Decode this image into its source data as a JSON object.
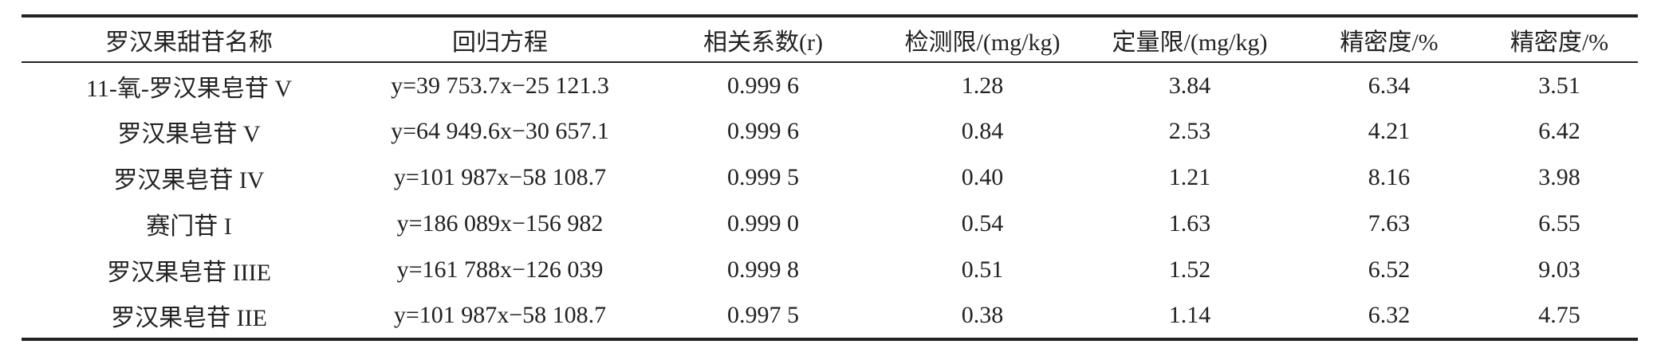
{
  "table": {
    "headers": [
      "罗汉果甜苷名称",
      "回归方程",
      "相关系数(r)",
      "检测限/(mg/kg)",
      "定量限/(mg/kg)",
      "精密度/%",
      "精密度/%"
    ],
    "rows": [
      [
        "11-氧-罗汉果皂苷 V",
        "y=39 753.7x−25 121.3",
        "0.999 6",
        "1.28",
        "3.84",
        "6.34",
        "3.51"
      ],
      [
        "罗汉果皂苷 V",
        "y=64 949.6x−30 657.1",
        "0.999 6",
        "0.84",
        "2.53",
        "4.21",
        "6.42"
      ],
      [
        "罗汉果皂苷 IV",
        "y=101 987x−58 108.7",
        "0.999 5",
        "0.40",
        "1.21",
        "8.16",
        "3.98"
      ],
      [
        "赛门苷 I",
        "y=186 089x−156 982",
        "0.999 0",
        "0.54",
        "1.63",
        "7.63",
        "6.55"
      ],
      [
        "罗汉果皂苷 IIIE",
        "y=161 788x−126 039",
        "0.999 8",
        "0.51",
        "1.52",
        "6.52",
        "9.03"
      ],
      [
        "罗汉果皂苷 IIE",
        "y=101 987x−58 108.7",
        "0.997 5",
        "0.38",
        "1.14",
        "6.32",
        "4.75"
      ]
    ]
  }
}
